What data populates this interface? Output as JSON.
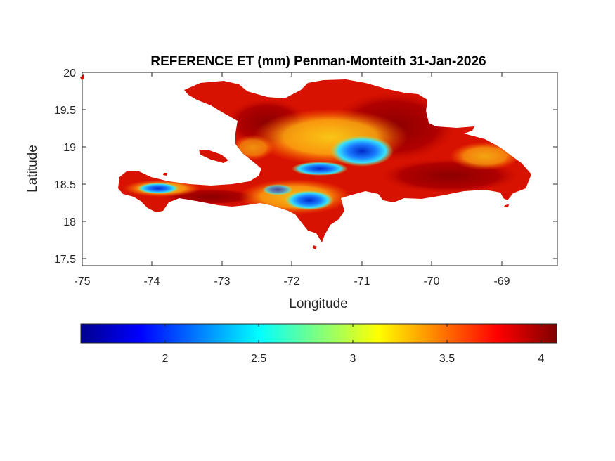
{
  "chart_data": {
    "type": "heatmap",
    "title": "REFERENCE ET (mm) Penman-Monteith 31-Jan-2026",
    "xlabel": "Longitude",
    "ylabel": "Latitude",
    "xlim": [
      -75,
      -68.2
    ],
    "ylim": [
      17.4,
      20
    ],
    "x_ticks": [
      "-75",
      "-74",
      "-73",
      "-72",
      "-71",
      "-70",
      "-69"
    ],
    "y_ticks": [
      "17.5",
      "18",
      "18.5",
      "19",
      "19.5",
      "20"
    ],
    "colorbar": {
      "colormap": "jet",
      "orientation": "horizontal",
      "range": [
        1.55,
        4.05
      ],
      "ticks": [
        "2",
        "2.5",
        "3",
        "3.5",
        "4"
      ]
    },
    "region": "Hispaniola",
    "value_range_observed": [
      1.6,
      4.05
    ],
    "dominant_value": 3.8
  }
}
